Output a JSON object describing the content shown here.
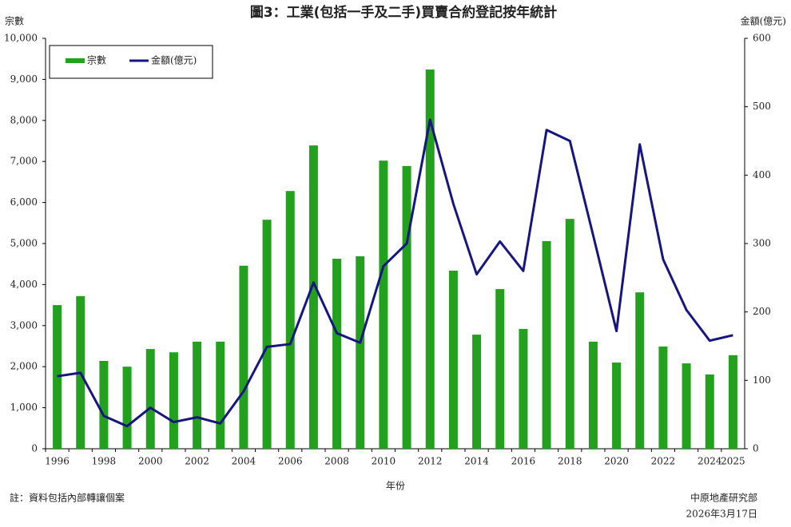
{
  "chart_data": {
    "type": "bar",
    "title": "圖3：工業(包括一手及二手)買賣合約登記按年統計",
    "y_label": "宗數",
    "y2_label": "金額(億元)",
    "x_label": "年份",
    "note": "註：資料包括內部轉讓個案",
    "source": "中原地產研究部",
    "date": "2026年3月17日",
    "categories": [
      "1996",
      null,
      "1998",
      null,
      "2000",
      null,
      "2002",
      null,
      "2004",
      null,
      "2006",
      null,
      "2008",
      null,
      "2010",
      null,
      "2012",
      null,
      "2014",
      null,
      "2016",
      null,
      "2018",
      null,
      "2020",
      null,
      "2022",
      null,
      "2024",
      "2025"
    ],
    "series": [
      {
        "name": "宗數",
        "type": "bar",
        "color": "#22a01e",
        "values": [
          3500,
          3720,
          2140,
          2000,
          2430,
          2350,
          2610,
          2610,
          4460,
          5580,
          6280,
          7390,
          4630,
          4690,
          7020,
          6890,
          9240,
          4340,
          2780,
          3890,
          2920,
          5060,
          5600,
          2610,
          2100,
          3810,
          2490,
          2080,
          1810,
          2280
        ]
      },
      {
        "name": "金額(億元)",
        "type": "line",
        "axis": "y2",
        "color": "#16167e",
        "values": [
          106,
          111,
          48,
          33,
          60,
          39,
          46,
          37,
          84,
          149,
          153,
          243,
          169,
          155,
          267,
          300,
          481,
          358,
          255,
          303,
          260,
          466,
          450,
          312,
          172,
          445,
          277,
          203,
          158,
          166
        ]
      }
    ],
    "ylim": [
      0,
      10000
    ],
    "yticks": [
      0,
      {
        "value": 1000,
        "label": "1,000"
      },
      {
        "value": 2000,
        "label": "2,000"
      },
      {
        "value": 3000,
        "label": "3,000"
      },
      {
        "value": 4000,
        "label": "4,000"
      },
      {
        "value": 5000,
        "label": "5,000"
      },
      {
        "value": 6000,
        "label": "6,000"
      },
      {
        "value": 7000,
        "label": "7,000"
      },
      {
        "value": 8000,
        "label": "8,000"
      },
      {
        "value": 9000,
        "label": "9,000"
      },
      {
        "value": 10000,
        "label": "10,000"
      }
    ],
    "y2lim": [
      0,
      600
    ],
    "y2ticks": [
      0,
      100,
      200,
      300,
      400,
      500,
      600
    ],
    "legend": "top-left"
  }
}
